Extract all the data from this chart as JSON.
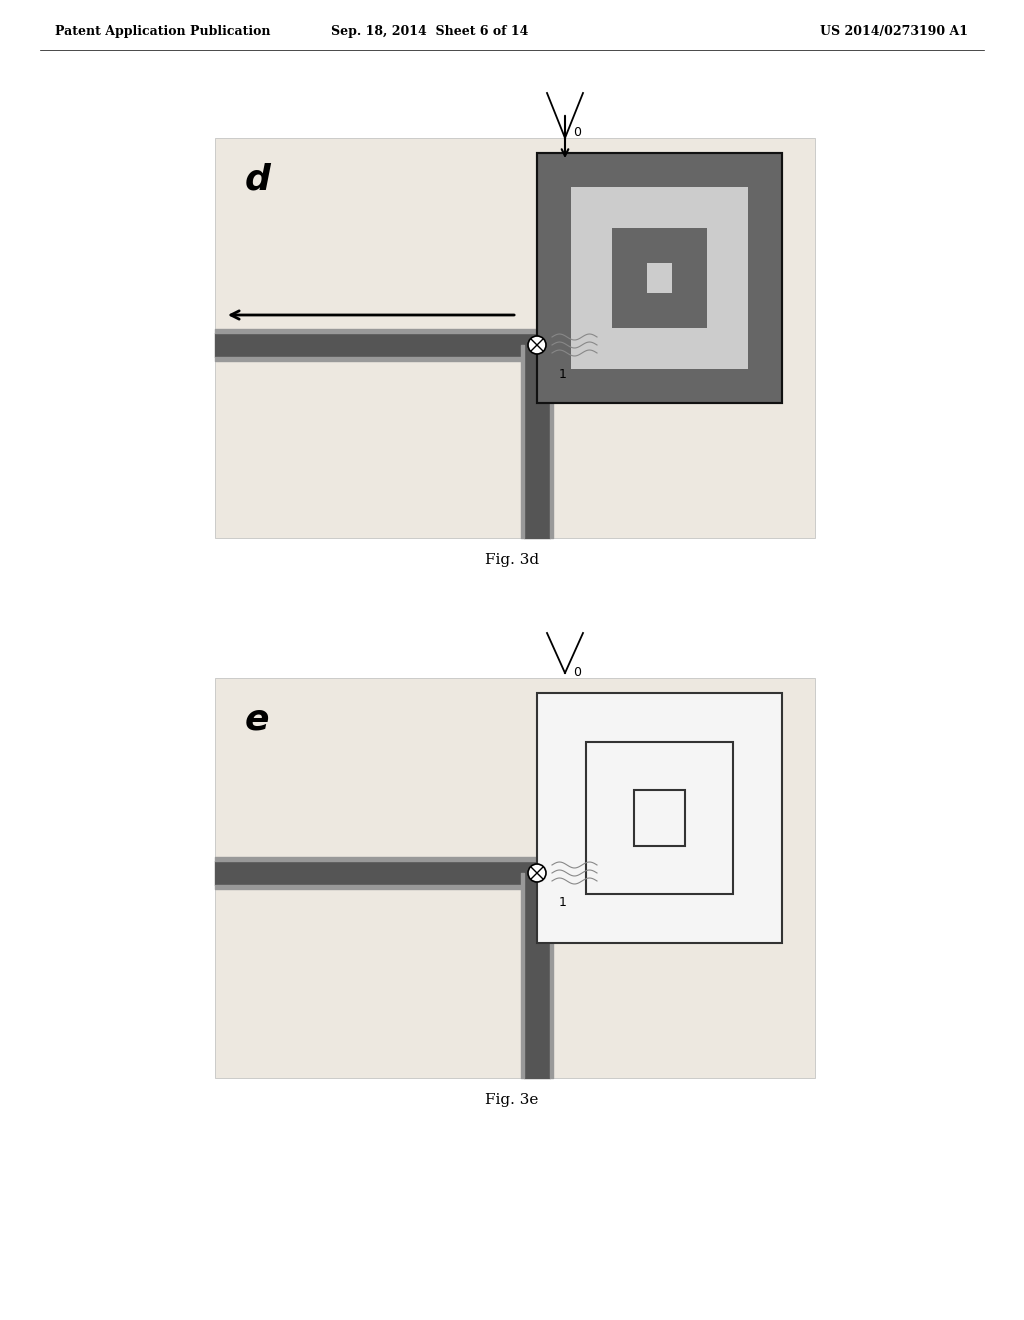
{
  "background_color": "#ffffff",
  "header_left": "Patent Application Publication",
  "header_center": "Sep. 18, 2014  Sheet 6 of 14",
  "header_right": "US 2014/0273190 A1",
  "header_fontsize": 9,
  "fig3d_label": "d",
  "fig3d_caption": "Fig. 3d",
  "fig3e_label": "e",
  "fig3e_caption": "Fig. 3e",
  "label_fontsize": 26,
  "caption_fontsize": 11,
  "panel_bg": "#ede8e0",
  "channel_dark": "#555555",
  "channel_mid": "#777777",
  "channel_light": "#999999",
  "spiral_dark": "#555555",
  "spiral_mid": "#888888",
  "spiral_light": "#cccccc"
}
